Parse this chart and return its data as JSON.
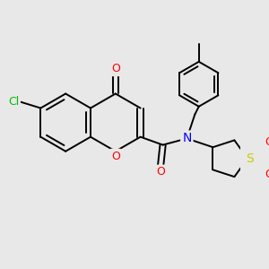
{
  "bg_color": "#e8e8e8",
  "bond_width": 1.4,
  "atom_colors": {
    "O": "#ff0000",
    "N": "#0000ff",
    "Cl": "#00bb00",
    "S": "#cccc00",
    "C": "#000000"
  },
  "font_size": 8.0
}
